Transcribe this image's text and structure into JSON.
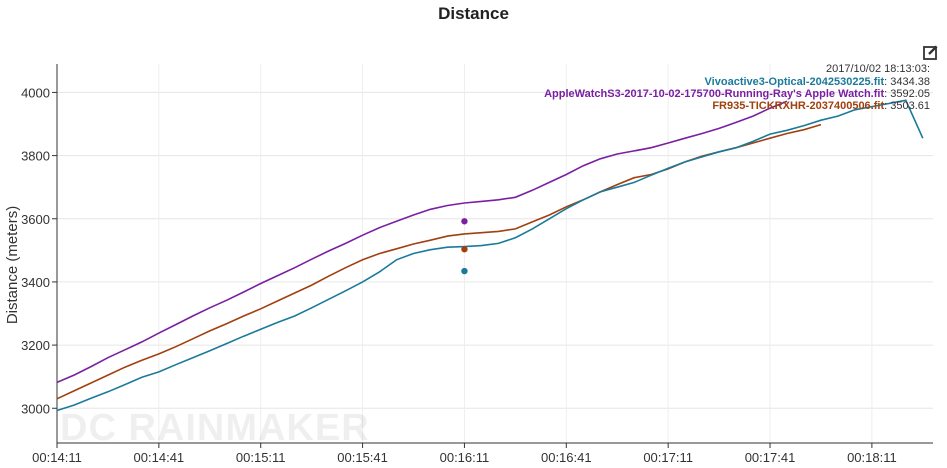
{
  "chart_data": {
    "type": "line",
    "title": "Distance",
    "ylabel": "Distance (meters)",
    "xlabel": "",
    "ylim": [
      2890,
      4090
    ],
    "yticks": [
      3000,
      3200,
      3400,
      3600,
      3800,
      4000
    ],
    "x_tick_labels": [
      "00:14:11",
      "00:14:41",
      "00:15:11",
      "00:15:41",
      "00:16:11",
      "00:16:41",
      "00:17:11",
      "00:17:41",
      "00:18:11"
    ],
    "x_tick_seconds": [
      851,
      881,
      911,
      941,
      971,
      1001,
      1031,
      1061,
      1091
    ],
    "xlim_seconds": [
      851,
      1109
    ],
    "grid": true,
    "cursor_seconds": 971,
    "x_seconds": [
      851,
      856,
      861,
      866,
      871,
      876,
      881,
      886,
      891,
      896,
      901,
      906,
      911,
      916,
      921,
      926,
      931,
      936,
      941,
      946,
      951,
      956,
      961,
      966,
      971,
      976,
      981,
      986,
      991,
      996,
      1001,
      1006,
      1011,
      1016,
      1021,
      1026,
      1031,
      1036,
      1041,
      1046,
      1051,
      1056,
      1061,
      1066,
      1071,
      1076,
      1081,
      1086,
      1091,
      1096,
      1101,
      1106,
      1109
    ],
    "series": [
      {
        "name": "AppleWatchS3-2017-10-02-175700-Running-Ray's Apple Watch.fit",
        "color": "#7b1fa2",
        "values": [
          3082,
          3105,
          3132,
          3160,
          3185,
          3210,
          3238,
          3265,
          3292,
          3318,
          3342,
          3368,
          3395,
          3420,
          3445,
          3472,
          3498,
          3522,
          3548,
          3572,
          3592,
          3612,
          3630,
          3642,
          3650,
          3655,
          3660,
          3668,
          3690,
          3715,
          3740,
          3768,
          3790,
          3805,
          3815,
          3825,
          3840,
          3855,
          3870,
          3886,
          3905,
          3925,
          3950,
          3972
        ],
        "tooltip_value": "3592.05"
      },
      {
        "name": "FR935-TICKRXHR-2037400506.fit",
        "color": "#a0400f",
        "values": [
          3030,
          3055,
          3080,
          3105,
          3130,
          3152,
          3172,
          3195,
          3220,
          3245,
          3268,
          3292,
          3315,
          3340,
          3365,
          3390,
          3418,
          3445,
          3470,
          3490,
          3505,
          3520,
          3532,
          3545,
          3552,
          3556,
          3560,
          3568,
          3590,
          3612,
          3638,
          3660,
          3685,
          3708,
          3730,
          3740,
          3758,
          3780,
          3798,
          3812,
          3825,
          3840,
          3855,
          3870,
          3882,
          3898
        ],
        "tooltip_value": "3503.61"
      },
      {
        "name": "Vivoactive3-Optical-2042530225.fit",
        "color": "#1b7a9a",
        "values": [
          2993,
          3010,
          3032,
          3052,
          3075,
          3098,
          3115,
          3138,
          3160,
          3182,
          3205,
          3228,
          3250,
          3272,
          3292,
          3318,
          3345,
          3372,
          3400,
          3432,
          3470,
          3490,
          3502,
          3510,
          3512,
          3515,
          3522,
          3540,
          3568,
          3600,
          3632,
          3660,
          3685,
          3700,
          3715,
          3738,
          3760,
          3780,
          3796,
          3812,
          3825,
          3845,
          3868,
          3880,
          3895,
          3912,
          3925,
          3945,
          3955,
          3965,
          3975,
          3855
        ],
        "tooltip_value": "3434.38"
      }
    ]
  },
  "tooltip": {
    "time": "2017/10/02 18:13:03:",
    "rows": [
      {
        "name": "Vivoactive3-Optical-2042530225.fit",
        "value": "3434.38",
        "color": "#1b7a9a"
      },
      {
        "name": "AppleWatchS3-2017-10-02-175700-Running-Ray's Apple Watch.fit",
        "value": "3592.05",
        "color": "#7b1fa2"
      },
      {
        "name": "FR935-TICKRXHR-2037400506.fit",
        "value": "3503.61",
        "color": "#a0400f"
      }
    ]
  },
  "watermark": "DC RAINMAKER",
  "icons": {
    "edit": "edit-icon"
  }
}
